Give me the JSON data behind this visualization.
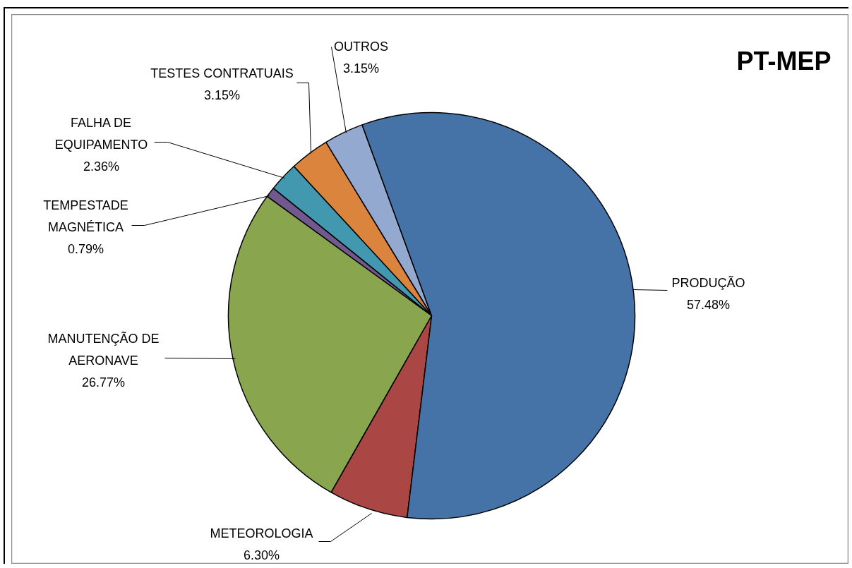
{
  "chart_data": {
    "type": "pie",
    "title": "PT-MEP",
    "categories": [
      "OUTROS",
      "TESTES CONTRATUAIS",
      "FALHA DE EQUIPAMENTO",
      "TEMPESTADE MAGNÉTICA",
      "MANUTENÇÃO DE AERONAVE",
      "METEOROLOGIA",
      "PRODUÇÃO"
    ],
    "values": [
      3.15,
      3.15,
      2.36,
      0.79,
      26.77,
      6.3,
      57.48
    ],
    "colors": [
      "#93a9cf",
      "#db843d",
      "#4198af",
      "#71588f",
      "#89a54e",
      "#aa4643",
      "#4572a7"
    ],
    "value_labels": [
      "3.15%",
      "3.15%",
      "2.36%",
      "0.79%",
      "26.77%",
      "6.30%",
      "57.48%"
    ]
  }
}
